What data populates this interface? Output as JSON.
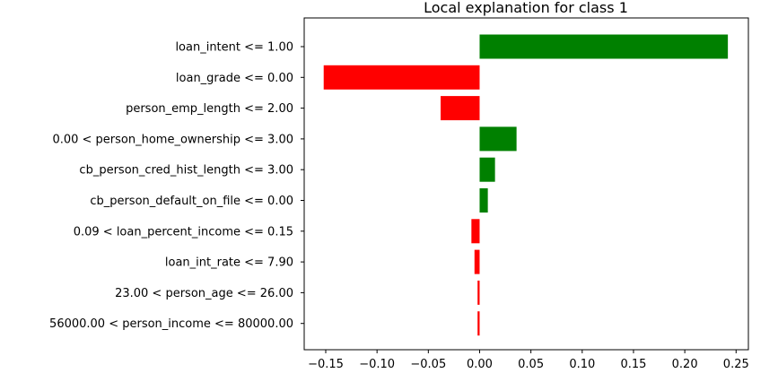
{
  "chart_data": {
    "type": "bar",
    "orientation": "horizontal",
    "title": "Local explanation for class 1",
    "xlabel": "",
    "ylabel": "",
    "categories": [
      "loan_intent <= 1.00",
      "loan_grade <= 0.00",
      "person_emp_length <= 2.00",
      "0.00 < person_home_ownership <= 3.00",
      "cb_person_cred_hist_length <= 3.00",
      "cb_person_default_on_file <= 0.00",
      "0.09 < loan_percent_income <= 0.15",
      "loan_int_rate <= 7.90",
      "23.00 < person_age <= 26.00",
      "56000.00 < person_income <= 80000.00"
    ],
    "values": [
      0.242,
      -0.152,
      -0.038,
      0.036,
      0.015,
      0.008,
      -0.008,
      -0.005,
      -0.002,
      -0.002
    ],
    "xlim": [
      -0.171,
      0.262
    ],
    "xticks": [
      -0.15,
      -0.1,
      -0.05,
      0.0,
      0.05,
      0.1,
      0.15,
      0.2,
      0.25
    ],
    "xtick_labels": [
      "−0.15",
      "−0.10",
      "−0.05",
      "0.00",
      "0.05",
      "0.10",
      "0.15",
      "0.20",
      "0.25"
    ],
    "grid": false,
    "colors": {
      "positive": "#008000",
      "negative": "#ff0000"
    }
  }
}
